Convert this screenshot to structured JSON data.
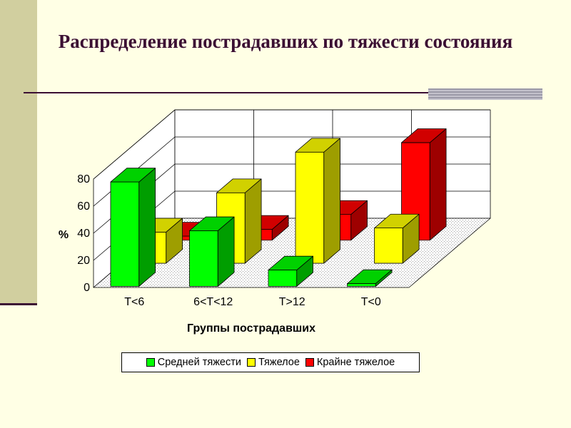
{
  "slide": {
    "title": "Распределение пострадавших по тяжести состояния",
    "colors": {
      "stripe": "#d1cf9f",
      "title": "#3b0f33",
      "background": "#ffffe5"
    }
  },
  "chart_data": {
    "type": "bar",
    "title": "",
    "xlabel": "Группы пострадавших",
    "ylabel": "%",
    "ylim": [
      0,
      80
    ],
    "yticks": [
      0,
      20,
      40,
      60,
      80
    ],
    "categories": [
      "T<6",
      "6<T<12",
      "T>12",
      "T<0"
    ],
    "series": [
      {
        "name": "Средней тяжести",
        "color": "#00ff00",
        "values": [
          77,
          41,
          12,
          2
        ]
      },
      {
        "name": "Тяжелое",
        "color": "#ffff00",
        "values": [
          23,
          52,
          82,
          26
        ]
      },
      {
        "name": "Крайне тяжелое",
        "color": "#ff0000",
        "values": [
          3,
          8,
          19,
          72
        ]
      }
    ],
    "grid": true,
    "legend_position": "bottom"
  }
}
